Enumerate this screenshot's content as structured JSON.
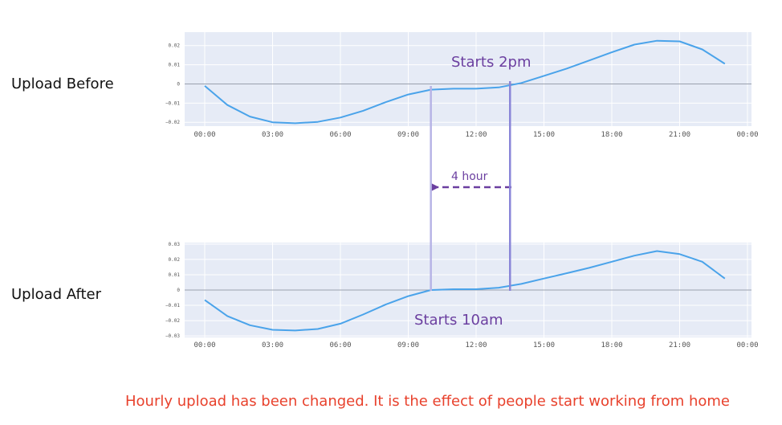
{
  "labels": {
    "before": "Upload Before",
    "after": "Upload After",
    "caption": "Hourly upload has been changed. It is the effect of people start working from home"
  },
  "annotations": {
    "before_start": "Starts 2pm",
    "after_start": "Starts 10am",
    "shift": "4 hour"
  },
  "colors": {
    "line": "#4aa3ea",
    "plot_bg": "#e6ebf6",
    "annotation": "#6b3fa0",
    "marker_line": "#8a86d8",
    "caption": "#e8412c"
  },
  "chart_data": [
    {
      "type": "line",
      "name": "before",
      "x_ticks": [
        "00:00",
        "03:00",
        "06:00",
        "09:00",
        "12:00",
        "15:00",
        "18:00",
        "21:00",
        "00:00"
      ],
      "y_ticks": [
        "0.02",
        "0.01",
        "0",
        "−0.01",
        "−0.02"
      ],
      "ylim": [
        -0.022,
        0.027
      ],
      "x": [
        0,
        1,
        2,
        3,
        4,
        5,
        6,
        7,
        8,
        9,
        10,
        11,
        12,
        13,
        14,
        15,
        16,
        17,
        18,
        19,
        20,
        21,
        22,
        23
      ],
      "values": [
        -0.001,
        -0.011,
        -0.017,
        -0.02,
        -0.0205,
        -0.0198,
        -0.0175,
        -0.014,
        -0.0095,
        -0.0055,
        -0.003,
        -0.0025,
        -0.0025,
        -0.0018,
        0.0005,
        0.0042,
        0.008,
        0.0122,
        0.0165,
        0.0205,
        0.0225,
        0.0222,
        0.018,
        0.0105
      ],
      "marker_hour": 13.5,
      "grid": true
    },
    {
      "type": "line",
      "name": "after",
      "x_ticks": [
        "00:00",
        "03:00",
        "06:00",
        "09:00",
        "12:00",
        "15:00",
        "18:00",
        "21:00",
        "00:00"
      ],
      "y_ticks": [
        "0.03",
        "0.02",
        "0.01",
        "0",
        "−0.01",
        "−0.02",
        "−0.03"
      ],
      "ylim": [
        -0.031,
        0.031
      ],
      "x": [
        0,
        1,
        2,
        3,
        4,
        5,
        6,
        7,
        8,
        9,
        10,
        11,
        12,
        13,
        14,
        15,
        16,
        17,
        18,
        19,
        20,
        21,
        22,
        23
      ],
      "values": [
        -0.0065,
        -0.017,
        -0.023,
        -0.026,
        -0.0265,
        -0.0255,
        -0.022,
        -0.016,
        -0.0095,
        -0.004,
        0.0,
        0.0005,
        0.0005,
        0.0015,
        0.004,
        0.0075,
        0.011,
        0.0145,
        0.0185,
        0.0225,
        0.0255,
        0.0235,
        0.0185,
        0.0075
      ],
      "marker_hour": 10,
      "grid": true
    }
  ]
}
